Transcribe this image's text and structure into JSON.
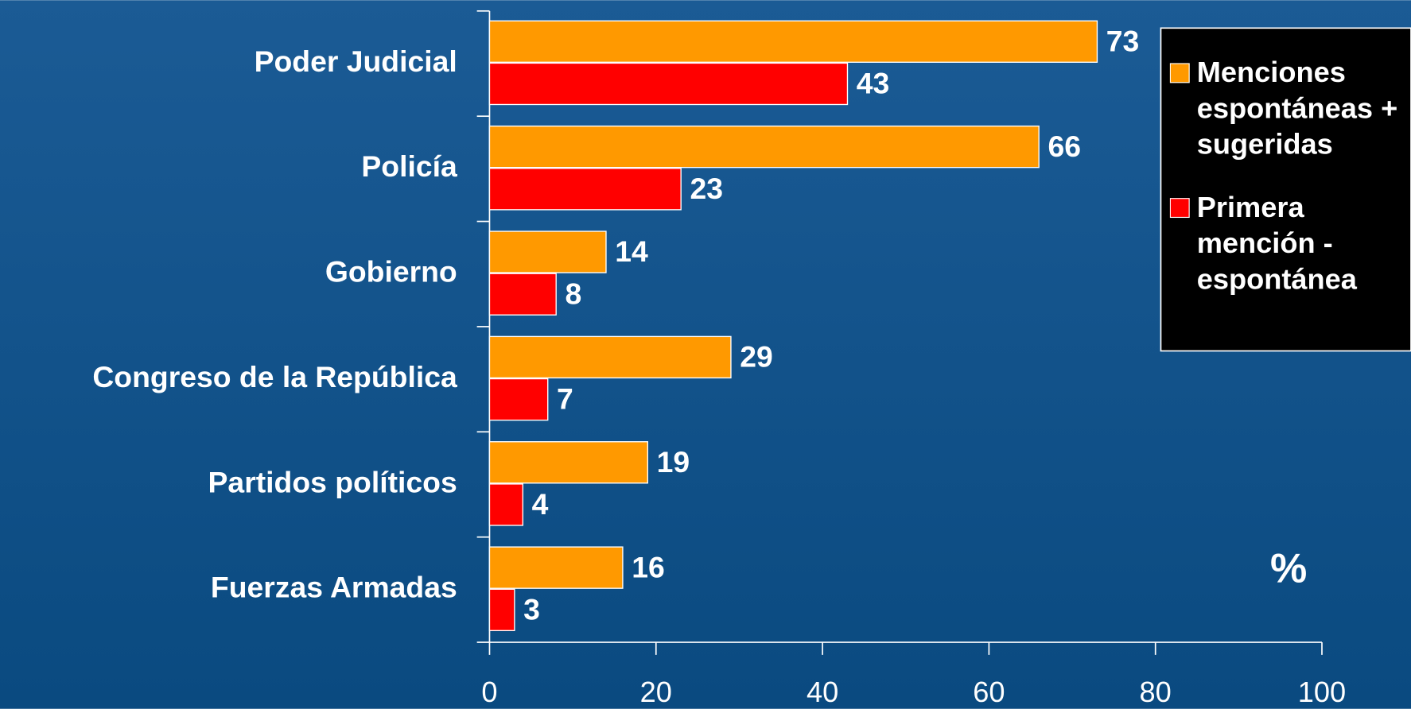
{
  "chart_data": {
    "type": "barh",
    "categories": [
      "Poder Judicial",
      "Policía",
      "Gobierno",
      "Congreso de la República",
      "Partidos políticos",
      "Fuerzas Armadas"
    ],
    "series": [
      {
        "name": "Menciones espontáneas + sugeridas",
        "color": "#ff9900",
        "values": [
          73,
          66,
          14,
          29,
          19,
          16
        ]
      },
      {
        "name": "Primera mención - espontánea",
        "color": "#ff0000",
        "values": [
          43,
          23,
          8,
          7,
          4,
          3
        ]
      }
    ],
    "xlim": [
      0,
      100
    ],
    "xticks": [
      0,
      20,
      40,
      60,
      80,
      100
    ],
    "annotation": "%",
    "legend": "right"
  }
}
